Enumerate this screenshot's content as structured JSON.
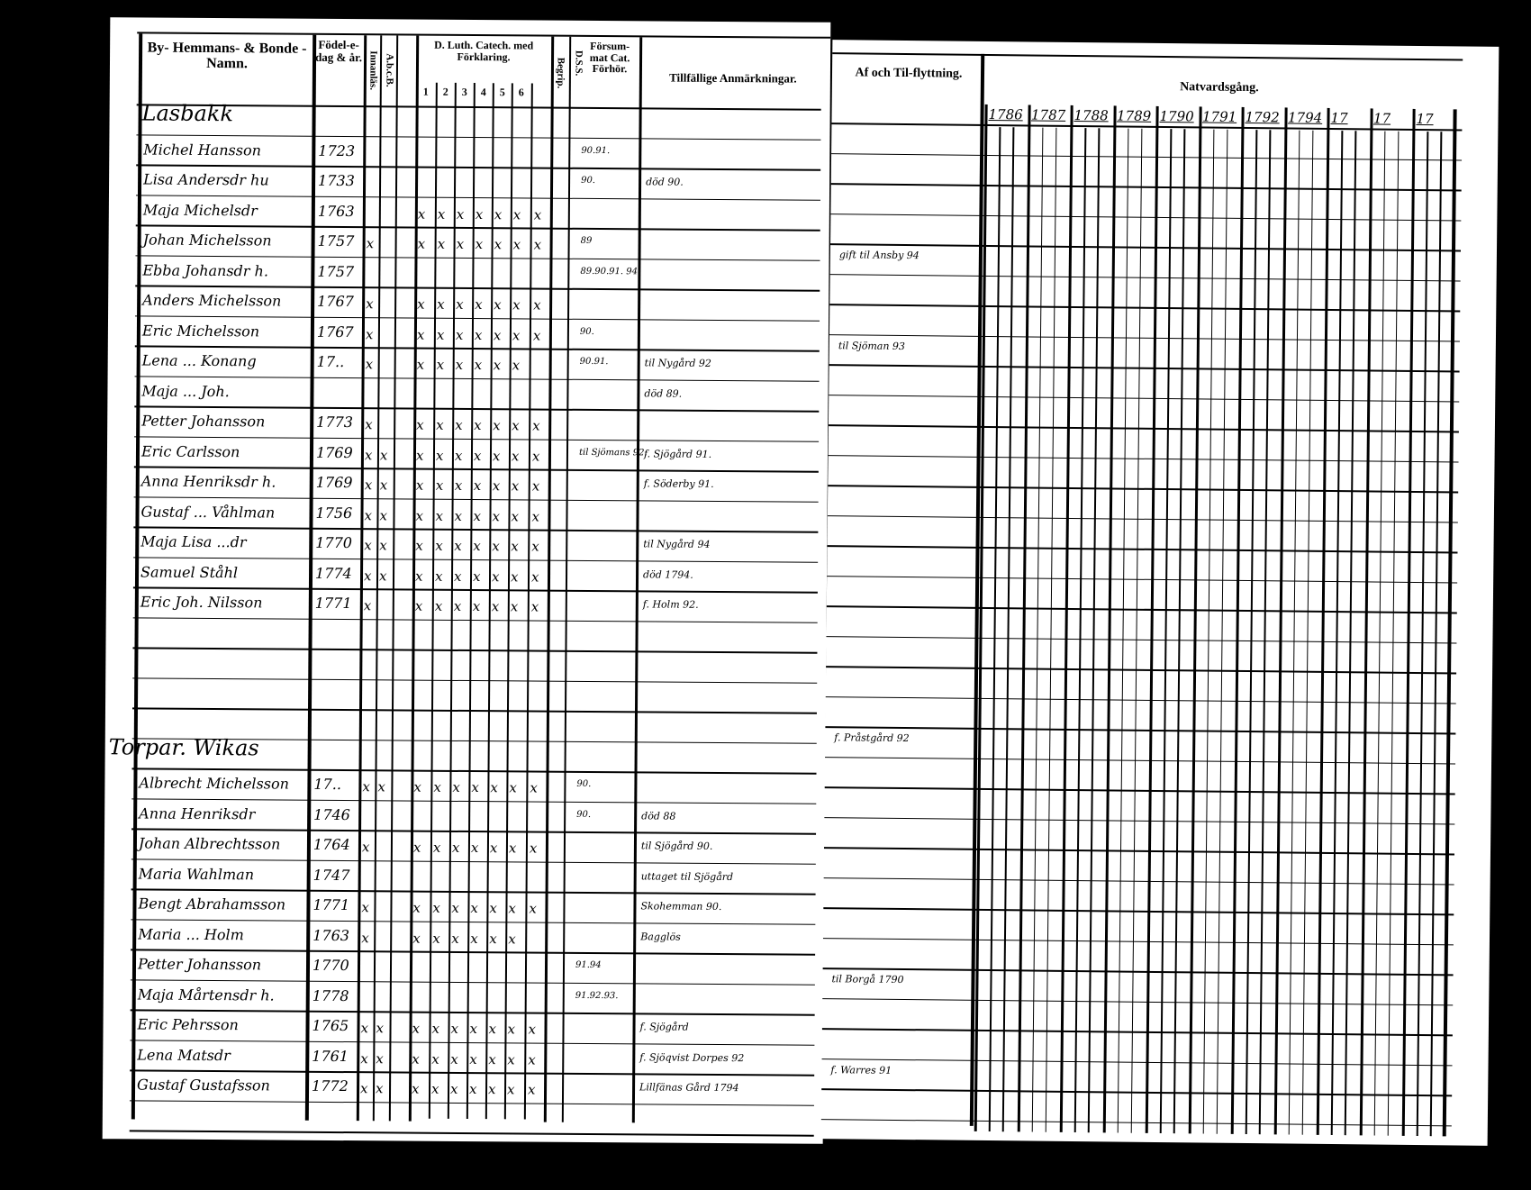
{
  "left_page": {
    "headers": {
      "name": "By- Hemmans- & Bonde - Namn.",
      "birth": "Födel-e-dag & år.",
      "abc": "A.b.c.B.",
      "innanlas": "Innanläs.",
      "catechism": "D. Luth. Catech. med Förklaring.",
      "catechism_parts": [
        "1",
        "2",
        "3",
        "4",
        "5",
        "6"
      ],
      "begrip": "Begrip.",
      "dss": "D.S.S.",
      "forsummat": "Försum-mat Cat. Förhör.",
      "remarks": "Tillfällige Anmärkningar."
    },
    "sections": [
      {
        "title": "Lasbakk",
        "rows": [
          {
            "name": "Michel Hansson",
            "birth": "1723",
            "marks": [
              0,
              0,
              0,
              0,
              0,
              0,
              0,
              0,
              0
            ],
            "forhor": "90.91.",
            "remark": ""
          },
          {
            "name": "Lisa Andersdr hu",
            "birth": "1733",
            "marks": [
              0,
              0,
              0,
              0,
              0,
              0,
              0,
              0,
              0
            ],
            "forhor": "90.",
            "remark": "död 90."
          },
          {
            "name": "Maja Michelsdr",
            "birth": "1763",
            "marks": [
              0,
              0,
              1,
              1,
              1,
              1,
              1,
              1,
              1
            ],
            "forhor": "",
            "remark": ""
          },
          {
            "name": "Johan Michelsson",
            "birth": "1757",
            "marks": [
              1,
              0,
              1,
              1,
              1,
              1,
              1,
              1,
              1
            ],
            "forhor": "89",
            "remark": ""
          },
          {
            "name": "Ebba Johansdr h.",
            "birth": "1757",
            "marks": [
              0,
              0,
              0,
              0,
              0,
              0,
              0,
              0,
              0
            ],
            "forhor": "89.90.91. 94.",
            "remark": ""
          },
          {
            "name": "Anders Michelsson",
            "birth": "1767",
            "marks": [
              1,
              0,
              1,
              1,
              1,
              1,
              1,
              1,
              1
            ],
            "forhor": "",
            "remark": ""
          },
          {
            "name": "Eric Michelsson",
            "birth": "1767",
            "marks": [
              1,
              0,
              1,
              1,
              1,
              1,
              1,
              1,
              1
            ],
            "forhor": "90.",
            "remark": ""
          },
          {
            "name": "Lena ... Konang",
            "birth": "17..",
            "marks": [
              1,
              0,
              1,
              1,
              1,
              1,
              1,
              1,
              0
            ],
            "forhor": "90.91.",
            "remark": "til Nygård 92"
          },
          {
            "name": "Maja ... Joh.",
            "birth": "",
            "marks": [
              0,
              0,
              0,
              0,
              0,
              0,
              0,
              0,
              0
            ],
            "forhor": "",
            "remark": "död 89."
          },
          {
            "name": "Petter Johansson",
            "birth": "1773",
            "marks": [
              1,
              0,
              1,
              1,
              1,
              1,
              1,
              1,
              1
            ],
            "forhor": "",
            "remark": ""
          },
          {
            "name": "Eric Carlsson",
            "birth": "1769",
            "marks": [
              1,
              1,
              1,
              1,
              1,
              1,
              1,
              1,
              1
            ],
            "forhor": "til Sjömans 92.",
            "remark": "f. Sjögård 91."
          },
          {
            "name": "Anna Henriksdr h.",
            "birth": "1769",
            "marks": [
              1,
              1,
              1,
              1,
              1,
              1,
              1,
              1,
              1
            ],
            "forhor": "",
            "remark": "f. Söderby 91."
          },
          {
            "name": "Gustaf ... Våhlman",
            "birth": "1756",
            "marks": [
              1,
              1,
              1,
              1,
              1,
              1,
              1,
              1,
              1
            ],
            "forhor": "",
            "remark": ""
          },
          {
            "name": "Maja Lisa ...dr",
            "birth": "1770",
            "marks": [
              1,
              1,
              1,
              1,
              1,
              1,
              1,
              1,
              1
            ],
            "forhor": "",
            "remark": "til Nygård 94"
          },
          {
            "name": "Samuel Ståhl",
            "birth": "1774",
            "marks": [
              1,
              1,
              1,
              1,
              1,
              1,
              1,
              1,
              1
            ],
            "forhor": "",
            "remark": "död 1794."
          },
          {
            "name": "Eric Joh. Nilsson",
            "birth": "1771",
            "marks": [
              1,
              0,
              1,
              1,
              1,
              1,
              1,
              1,
              1
            ],
            "forhor": "",
            "remark": "f. Holm 92."
          }
        ]
      },
      {
        "title": "Torpar. Wikas",
        "rows": [
          {
            "name": "Albrecht Michelsson",
            "birth": "17..",
            "marks": [
              1,
              1,
              1,
              1,
              1,
              1,
              1,
              1,
              1
            ],
            "forhor": "90.",
            "remark": ""
          },
          {
            "name": "Anna Henriksdr",
            "birth": "1746",
            "marks": [
              0,
              0,
              0,
              0,
              0,
              0,
              0,
              0,
              0
            ],
            "forhor": "90.",
            "remark": "död 88"
          },
          {
            "name": "Johan Albrechtsson",
            "birth": "1764",
            "marks": [
              1,
              0,
              1,
              1,
              1,
              1,
              1,
              1,
              1
            ],
            "forhor": "",
            "remark": "til Sjögård 90."
          },
          {
            "name": "Maria Wahlman",
            "birth": "1747",
            "marks": [
              0,
              0,
              0,
              0,
              0,
              0,
              0,
              0,
              0
            ],
            "forhor": "",
            "remark": "uttaget til Sjögård"
          },
          {
            "name": "Bengt Abrahamsson",
            "birth": "1771",
            "marks": [
              1,
              0,
              1,
              1,
              1,
              1,
              1,
              1,
              1
            ],
            "forhor": "",
            "remark": "Skohemman 90."
          },
          {
            "name": "Maria ... Holm",
            "birth": "1763",
            "marks": [
              1,
              0,
              1,
              1,
              1,
              1,
              1,
              1,
              0
            ],
            "forhor": "",
            "remark": "Bagglös"
          },
          {
            "name": "Petter Johansson",
            "birth": "1770",
            "marks": [
              0,
              0,
              0,
              0,
              0,
              0,
              0,
              0,
              0
            ],
            "forhor": "91.94",
            "remark": ""
          },
          {
            "name": "Maja Mårtensdr h.",
            "birth": "1778",
            "marks": [
              0,
              0,
              0,
              0,
              0,
              0,
              0,
              0,
              0
            ],
            "forhor": "91.92.93.",
            "remark": ""
          },
          {
            "name": "Eric Pehrsson",
            "birth": "1765",
            "marks": [
              1,
              1,
              1,
              1,
              1,
              1,
              1,
              1,
              1
            ],
            "forhor": "",
            "remark": "f. Sjögård"
          },
          {
            "name": "Lena Matsdr",
            "birth": "1761",
            "marks": [
              1,
              1,
              1,
              1,
              1,
              1,
              1,
              1,
              1
            ],
            "forhor": "",
            "remark": "f. Sjöqvist Dorpes 92"
          },
          {
            "name": "Gustaf Gustafsson",
            "birth": "1772",
            "marks": [
              1,
              1,
              1,
              1,
              1,
              1,
              1,
              1,
              1
            ],
            "forhor": "",
            "remark": "Lillfänas Gård 1794"
          }
        ]
      }
    ]
  },
  "right_page": {
    "headers": {
      "moves": "Af och Til-flyttning.",
      "communion": "Natvardsgång.",
      "years": [
        "1786",
        "1787",
        "1788",
        "1789",
        "1790",
        "1791",
        "1792",
        "1794",
        "17",
        "17",
        "17"
      ]
    },
    "moves_notes": [
      {
        "row": 4,
        "text": "gift til Ansby 94"
      },
      {
        "row": 7,
        "text": "til Sjöman 93"
      },
      {
        "row": 20,
        "text": "f. Pråstgård 92"
      },
      {
        "row": 28,
        "text": "til Borgå 1790"
      },
      {
        "row": 31,
        "text": "f. Warres 91"
      }
    ]
  }
}
